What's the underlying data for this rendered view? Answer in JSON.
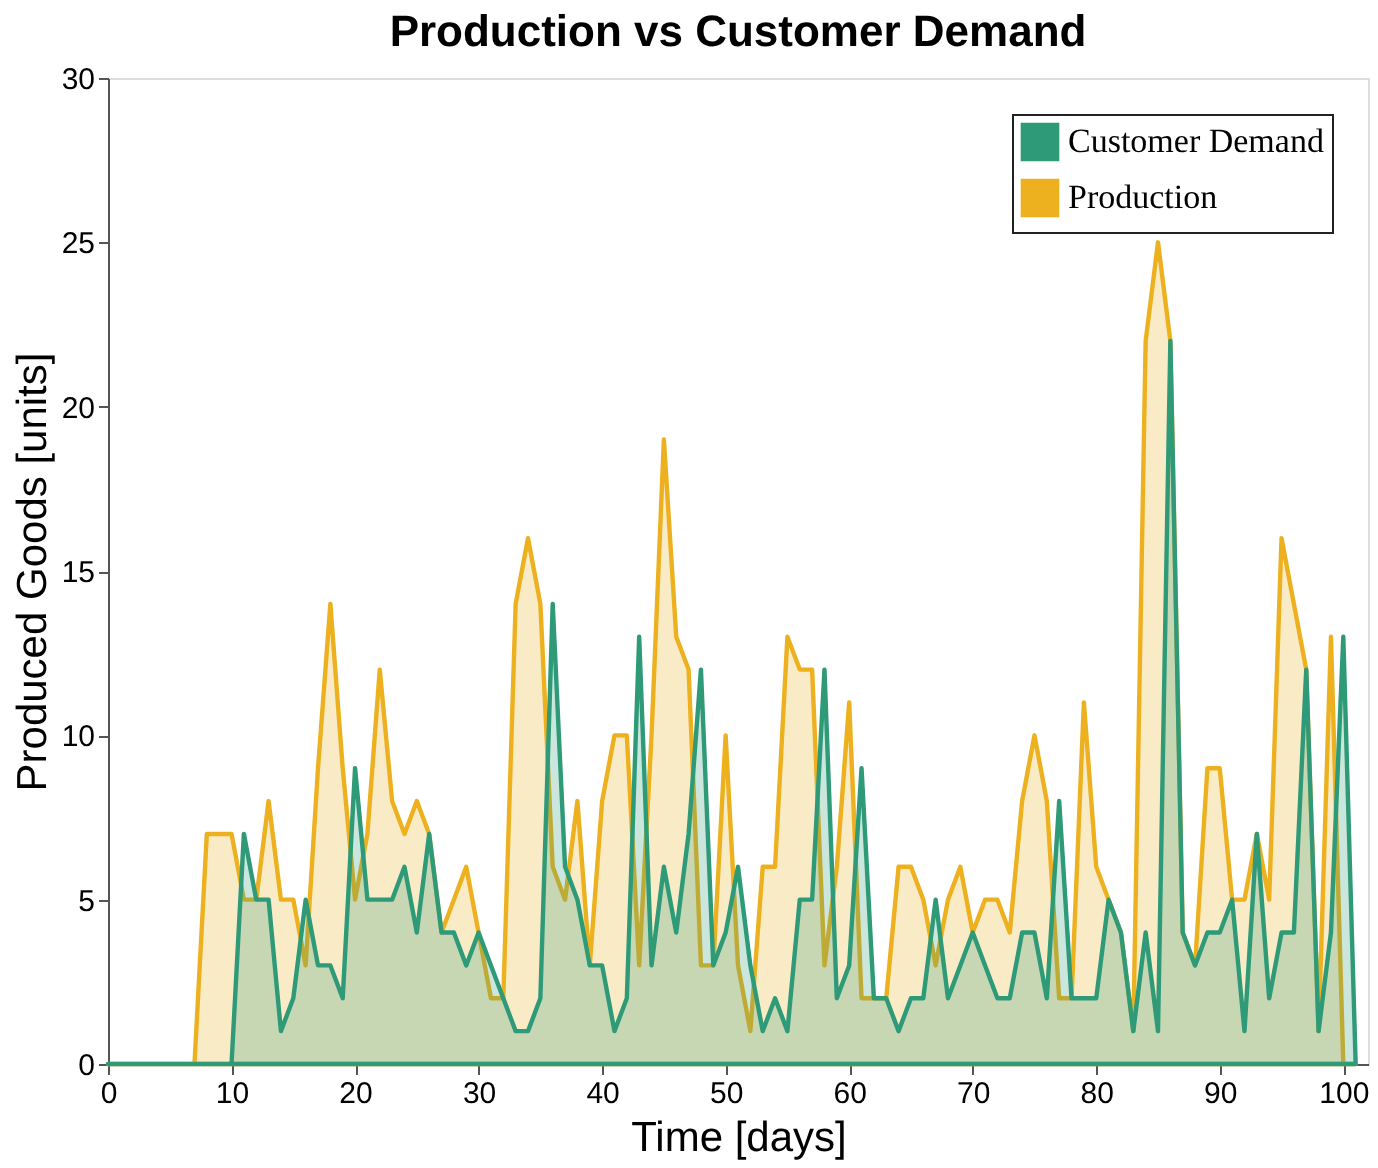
{
  "chart_data": {
    "type": "area",
    "title": "Production vs Customer Demand",
    "xlabel": "Time [days]",
    "ylabel": "Produced Goods [units]",
    "x": [
      0,
      1,
      2,
      3,
      4,
      5,
      6,
      7,
      8,
      9,
      10,
      11,
      12,
      13,
      14,
      15,
      16,
      17,
      18,
      19,
      20,
      21,
      22,
      23,
      24,
      25,
      26,
      27,
      28,
      29,
      30,
      31,
      32,
      33,
      34,
      35,
      36,
      37,
      38,
      39,
      40,
      41,
      42,
      43,
      44,
      45,
      46,
      47,
      48,
      49,
      50,
      51,
      52,
      53,
      54,
      55,
      56,
      57,
      58,
      59,
      60,
      61,
      62,
      63,
      64,
      65,
      66,
      67,
      68,
      69,
      70,
      71,
      72,
      73,
      74,
      75,
      76,
      77,
      78,
      79,
      80,
      81,
      82,
      83,
      84,
      85,
      86,
      87,
      88,
      89,
      90,
      91,
      92,
      93,
      94,
      95,
      96,
      97,
      98,
      99,
      100,
      101
    ],
    "series": [
      {
        "name": "Customer Demand",
        "color": "#2e9a78",
        "values": [
          0,
          0,
          0,
          0,
          0,
          0,
          0,
          0,
          0,
          0,
          0,
          7,
          5,
          5,
          1,
          2,
          5,
          3,
          3,
          2,
          9,
          5,
          5,
          5,
          6,
          4,
          7,
          4,
          4,
          3,
          4,
          3,
          2,
          1,
          1,
          2,
          14,
          6,
          5,
          3,
          3,
          1,
          2,
          13,
          3,
          6,
          4,
          7,
          12,
          3,
          4,
          6,
          3,
          1,
          2,
          1,
          5,
          5,
          12,
          2,
          3,
          9,
          2,
          2,
          1,
          2,
          2,
          5,
          2,
          3,
          4,
          3,
          2,
          2,
          4,
          4,
          2,
          8,
          2,
          2,
          2,
          5,
          4,
          1,
          4,
          1,
          22,
          4,
          3,
          4,
          4,
          5,
          1,
          7,
          2,
          4,
          4,
          12,
          1,
          4,
          13,
          0
        ]
      },
      {
        "name": "Production",
        "color": "#edb120",
        "values": [
          0,
          0,
          0,
          0,
          0,
          0,
          0,
          0,
          7,
          7,
          7,
          5,
          5,
          8,
          5,
          5,
          3,
          9,
          14,
          9,
          5,
          7,
          12,
          8,
          7,
          8,
          7,
          4,
          5,
          6,
          4,
          2,
          2,
          14,
          16,
          14,
          6,
          5,
          8,
          3,
          8,
          10,
          10,
          3,
          10,
          19,
          13,
          12,
          3,
          3,
          10,
          3,
          1,
          6,
          6,
          13,
          12,
          12,
          3,
          6,
          11,
          2,
          2,
          2,
          6,
          6,
          5,
          3,
          5,
          6,
          4,
          5,
          5,
          4,
          8,
          10,
          8,
          2,
          2,
          11,
          6,
          5,
          4,
          1,
          22,
          25,
          22,
          4,
          3,
          9,
          9,
          5,
          5,
          7,
          5,
          16,
          14,
          12,
          1,
          13,
          0,
          0
        ]
      }
    ],
    "xlim": [
      0,
      102
    ],
    "xticks": [
      0,
      10,
      20,
      30,
      40,
      50,
      60,
      70,
      80,
      90,
      100
    ],
    "ylim": [
      0,
      30
    ],
    "yticks": [
      0,
      5,
      10,
      15,
      20,
      25,
      30
    ],
    "grid": false,
    "legend": "top right"
  }
}
